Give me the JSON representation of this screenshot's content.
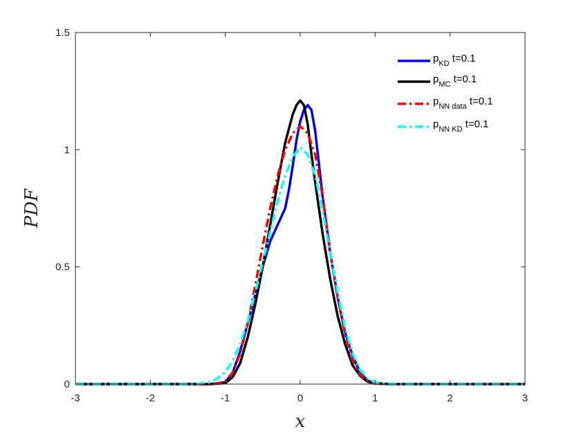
{
  "chart_data": {
    "type": "line",
    "xlabel": "x",
    "ylabel": "PDF",
    "xlim": [
      -3,
      3
    ],
    "ylim": [
      0,
      1.5
    ],
    "xticks": [
      "-3",
      "-2",
      "-1",
      "0",
      "1",
      "2",
      "3"
    ],
    "yticks": [
      "0",
      "0.5",
      "1",
      "1.5"
    ],
    "grid": false,
    "legend_position": "top-right",
    "series": [
      {
        "name": "p_KD t=0.1",
        "legend_main": "p",
        "legend_sub": "KD",
        "legend_suffix": " t=0.1",
        "color": "#0000FF",
        "style": "solid",
        "points": [
          [
            -3,
            0
          ],
          [
            -1.2,
            0
          ],
          [
            -1.0,
            0.008
          ],
          [
            -0.9,
            0.05
          ],
          [
            -0.8,
            0.14
          ],
          [
            -0.7,
            0.26
          ],
          [
            -0.6,
            0.38
          ],
          [
            -0.5,
            0.5
          ],
          [
            -0.4,
            0.61
          ],
          [
            -0.3,
            0.68
          ],
          [
            -0.2,
            0.75
          ],
          [
            -0.15,
            0.83
          ],
          [
            -0.1,
            0.93
          ],
          [
            -0.05,
            1.04
          ],
          [
            0,
            1.12
          ],
          [
            0.05,
            1.17
          ],
          [
            0.1,
            1.19
          ],
          [
            0.15,
            1.17
          ],
          [
            0.2,
            1.08
          ],
          [
            0.25,
            0.94
          ],
          [
            0.3,
            0.8
          ],
          [
            0.4,
            0.56
          ],
          [
            0.5,
            0.37
          ],
          [
            0.6,
            0.22
          ],
          [
            0.7,
            0.12
          ],
          [
            0.8,
            0.05
          ],
          [
            0.9,
            0.015
          ],
          [
            1.0,
            0.004
          ],
          [
            1.2,
            0
          ],
          [
            3,
            0
          ]
        ]
      },
      {
        "name": "p_MC t=0.1",
        "legend_main": "p",
        "legend_sub": "MC",
        "legend_suffix": " t=0.1",
        "color": "#000000",
        "style": "solid",
        "points": [
          [
            -3,
            0
          ],
          [
            -1.2,
            0
          ],
          [
            -1.0,
            0.004
          ],
          [
            -0.9,
            0.03
          ],
          [
            -0.8,
            0.09
          ],
          [
            -0.7,
            0.2
          ],
          [
            -0.6,
            0.34
          ],
          [
            -0.5,
            0.5
          ],
          [
            -0.4,
            0.68
          ],
          [
            -0.3,
            0.86
          ],
          [
            -0.2,
            1.03
          ],
          [
            -0.1,
            1.15
          ],
          [
            -0.05,
            1.19
          ],
          [
            0,
            1.21
          ],
          [
            0.05,
            1.19
          ],
          [
            0.1,
            1.11
          ],
          [
            0.15,
            0.98
          ],
          [
            0.2,
            0.86
          ],
          [
            0.3,
            0.64
          ],
          [
            0.4,
            0.45
          ],
          [
            0.5,
            0.29
          ],
          [
            0.6,
            0.17
          ],
          [
            0.7,
            0.08
          ],
          [
            0.8,
            0.035
          ],
          [
            0.9,
            0.01
          ],
          [
            1.0,
            0.002
          ],
          [
            1.2,
            0
          ],
          [
            3,
            0
          ]
        ]
      },
      {
        "name": "p_NN data t=0.1",
        "legend_main": "p",
        "legend_sub": "NN data",
        "legend_suffix": " t=0.1",
        "color": "#FF0000",
        "style": "dashdot",
        "points": [
          [
            -3,
            0
          ],
          [
            -1.3,
            0
          ],
          [
            -1.1,
            0.003
          ],
          [
            -1.0,
            0.012
          ],
          [
            -0.9,
            0.05
          ],
          [
            -0.8,
            0.13
          ],
          [
            -0.7,
            0.26
          ],
          [
            -0.6,
            0.42
          ],
          [
            -0.5,
            0.59
          ],
          [
            -0.4,
            0.75
          ],
          [
            -0.3,
            0.89
          ],
          [
            -0.2,
            1.0
          ],
          [
            -0.1,
            1.07
          ],
          [
            0,
            1.1
          ],
          [
            0.1,
            1.07
          ],
          [
            0.2,
            0.98
          ],
          [
            0.3,
            0.8
          ],
          [
            0.4,
            0.57
          ],
          [
            0.5,
            0.37
          ],
          [
            0.6,
            0.21
          ],
          [
            0.7,
            0.1
          ],
          [
            0.8,
            0.04
          ],
          [
            0.9,
            0.012
          ],
          [
            1.0,
            0.003
          ],
          [
            1.2,
            0
          ],
          [
            3,
            0
          ]
        ]
      },
      {
        "name": "p_NN KD t=0.1",
        "legend_main": "p",
        "legend_sub": "NN KD",
        "legend_suffix": " t=0.1",
        "color": "#00FFFF",
        "style": "dashdot",
        "points": [
          [
            -3,
            0
          ],
          [
            -1.4,
            0
          ],
          [
            -1.2,
            0.008
          ],
          [
            -1.1,
            0.025
          ],
          [
            -1.0,
            0.05
          ],
          [
            -0.9,
            0.1
          ],
          [
            -0.8,
            0.17
          ],
          [
            -0.7,
            0.27
          ],
          [
            -0.6,
            0.39
          ],
          [
            -0.5,
            0.52
          ],
          [
            -0.4,
            0.65
          ],
          [
            -0.3,
            0.78
          ],
          [
            -0.2,
            0.89
          ],
          [
            -0.1,
            0.97
          ],
          [
            0,
            1.01
          ],
          [
            0.1,
            0.98
          ],
          [
            0.2,
            0.89
          ],
          [
            0.3,
            0.74
          ],
          [
            0.4,
            0.56
          ],
          [
            0.5,
            0.39
          ],
          [
            0.6,
            0.24
          ],
          [
            0.7,
            0.13
          ],
          [
            0.8,
            0.06
          ],
          [
            0.9,
            0.025
          ],
          [
            1.0,
            0.008
          ],
          [
            1.2,
            0.001
          ],
          [
            1.4,
            0
          ],
          [
            3,
            0
          ]
        ]
      }
    ]
  }
}
